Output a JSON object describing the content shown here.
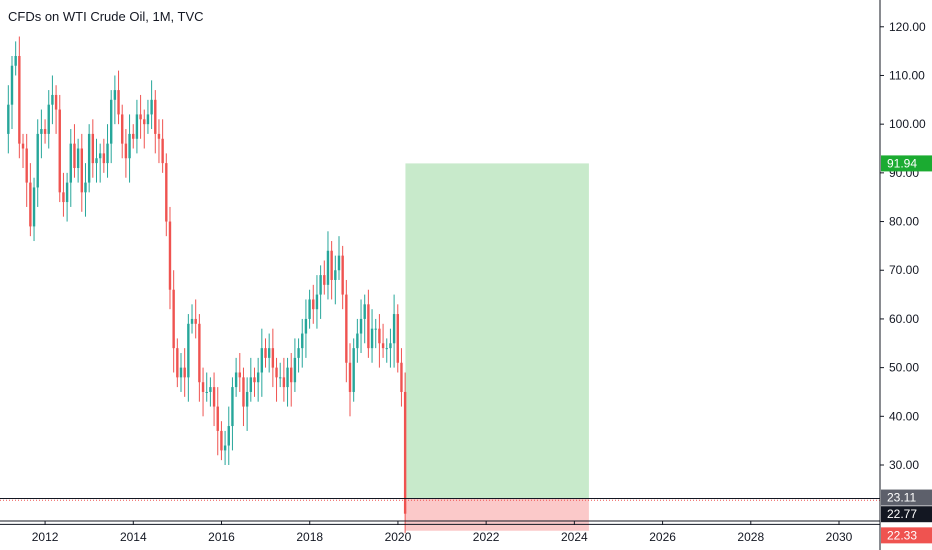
{
  "chart_data": {
    "type": "candlestick",
    "title": "CFDs on WTI Crude Oil, 1M, TVC",
    "colors": {
      "up": "#26a69a",
      "down": "#ef5350",
      "profit_zone": "#c8eacb",
      "loss_zone": "#fbc9c9",
      "target_tag": "#1bab31",
      "stop_tag": "#ef5350",
      "current_tag": "#131722",
      "entry_tag": "#5d606b",
      "axis_line": "#131722"
    },
    "x_axis": {
      "ticks": [
        "2012",
        "2014",
        "2016",
        "2018",
        "2020",
        "2022",
        "2024",
        "2026",
        "2028",
        "2030"
      ]
    },
    "y_axis": {
      "range": [
        18.5,
        125.5
      ],
      "ticks": [
        "120.00",
        "110.00",
        "100.00",
        "90.00",
        "80.00",
        "70.00",
        "60.00",
        "50.00",
        "40.00",
        "30.00"
      ]
    },
    "position": {
      "entry": 23.11,
      "target": 91.94,
      "stop": 22.33,
      "current": 22.77,
      "start": 2020.17,
      "end": 2024.33,
      "entry_label": "23.11",
      "target_label": "91.94",
      "stop_label": "22.33",
      "current_label": "22.77"
    },
    "candles_start": 2011.0,
    "candles_step": 0.0833,
    "closes": [
      90,
      98,
      104,
      112,
      114,
      96,
      95,
      88,
      79,
      87,
      98,
      99,
      98,
      104,
      106,
      103,
      86,
      84,
      88,
      96,
      91,
      95,
      86,
      88,
      98,
      92,
      93,
      94,
      92,
      96,
      105,
      107,
      102,
      96,
      93,
      98,
      97,
      102,
      101,
      100,
      102,
      105,
      98,
      97,
      92,
      80,
      66,
      54,
      48,
      50,
      48,
      59,
      60,
      59,
      47,
      45,
      45,
      46,
      42,
      37,
      33,
      34,
      38,
      46,
      49,
      48,
      42,
      45,
      48,
      47,
      49,
      54,
      52,
      54,
      50,
      48,
      48,
      46,
      50,
      47,
      52,
      54,
      57,
      60,
      64,
      62,
      65,
      69,
      67,
      74,
      68,
      70,
      73,
      65,
      51,
      45,
      54,
      57,
      60,
      63,
      54,
      58,
      58,
      55,
      54,
      54,
      55,
      61,
      51,
      45,
      20
    ]
  }
}
